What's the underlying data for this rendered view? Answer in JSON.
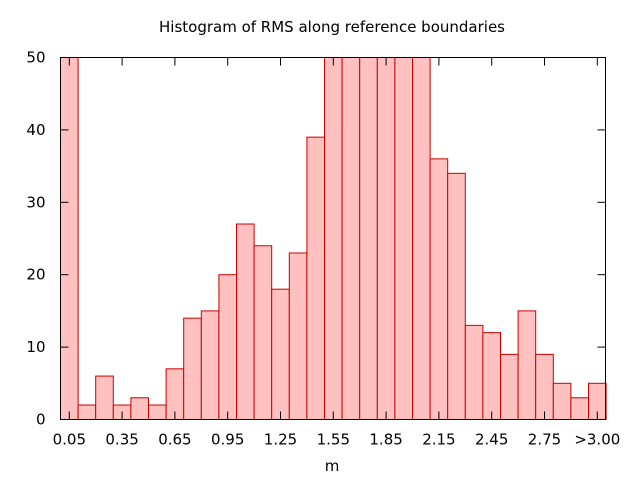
{
  "chart_data": {
    "type": "bar",
    "title": "Histogram of RMS along reference boundaries",
    "xlabel": "m",
    "ylabel": "",
    "ylim": [
      0,
      50
    ],
    "y_ticks": [
      0,
      10,
      20,
      30,
      40,
      50
    ],
    "x_tick_labels": [
      "0.05",
      "0.35",
      "0.65",
      "0.95",
      "1.25",
      "1.55",
      "1.85",
      "2.15",
      "2.45",
      "2.75",
      ">3.00"
    ],
    "grid": false,
    "legend": "none",
    "bar_fill": "#ffc0c0",
    "bar_stroke": "#cc0000",
    "categories": [
      "0.05",
      "0.15",
      "0.25",
      "0.35",
      "0.45",
      "0.55",
      "0.65",
      "0.75",
      "0.85",
      "0.95",
      "1.05",
      "1.15",
      "1.25",
      "1.35",
      "1.45",
      "1.55",
      "1.65",
      "1.75",
      "1.85",
      "1.95",
      "2.05",
      "2.15",
      "2.25",
      "2.35",
      "2.45",
      "2.55",
      "2.65",
      "2.75",
      "2.85",
      "2.95",
      ">3.00"
    ],
    "values": [
      50,
      2,
      6,
      2,
      3,
      2,
      7,
      14,
      15,
      20,
      27,
      24,
      18,
      23,
      39,
      50,
      50,
      50,
      50,
      50,
      50,
      36,
      34,
      13,
      12,
      9,
      15,
      9,
      5,
      3,
      5
    ]
  }
}
